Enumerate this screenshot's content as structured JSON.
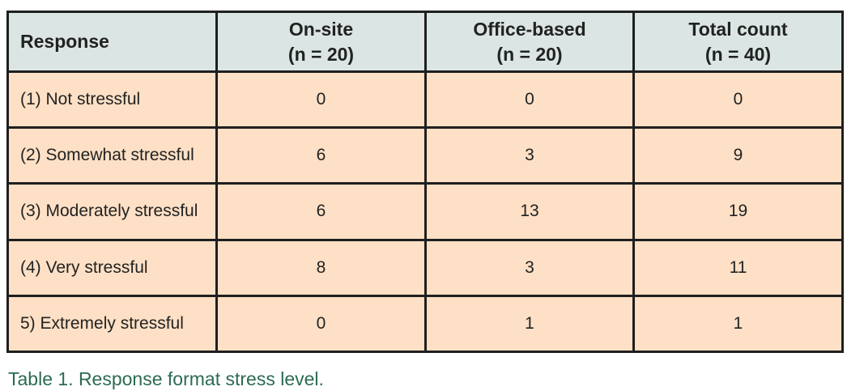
{
  "table": {
    "headers": [
      {
        "line1": "Response",
        "line2": ""
      },
      {
        "line1": "On-site",
        "line2": "(n = 20)"
      },
      {
        "line1": "Office-based",
        "line2": "(n = 20)"
      },
      {
        "line1": "Total count",
        "line2": "(n = 40)"
      }
    ],
    "rows": [
      {
        "response": "(1) Not stressful",
        "on_site": "0",
        "office_based": "0",
        "total": "0"
      },
      {
        "response": "(2) Somewhat stressful",
        "on_site": "6",
        "office_based": "3",
        "total": "9"
      },
      {
        "response": "(3) Moderately stressful",
        "on_site": "6",
        "office_based": "13",
        "total": "19"
      },
      {
        "response": "(4) Very stressful",
        "on_site": "8",
        "office_based": "3",
        "total": "11"
      },
      {
        "response": "5) Extremely stressful",
        "on_site": "0",
        "office_based": "1",
        "total": "1"
      }
    ]
  },
  "caption": "Table 1. Response format stress level.",
  "colors": {
    "header_bg": "#dbe6e4",
    "body_bg": "#fde0c5",
    "border": "#1f1f1f",
    "caption": "#2c6b52"
  }
}
